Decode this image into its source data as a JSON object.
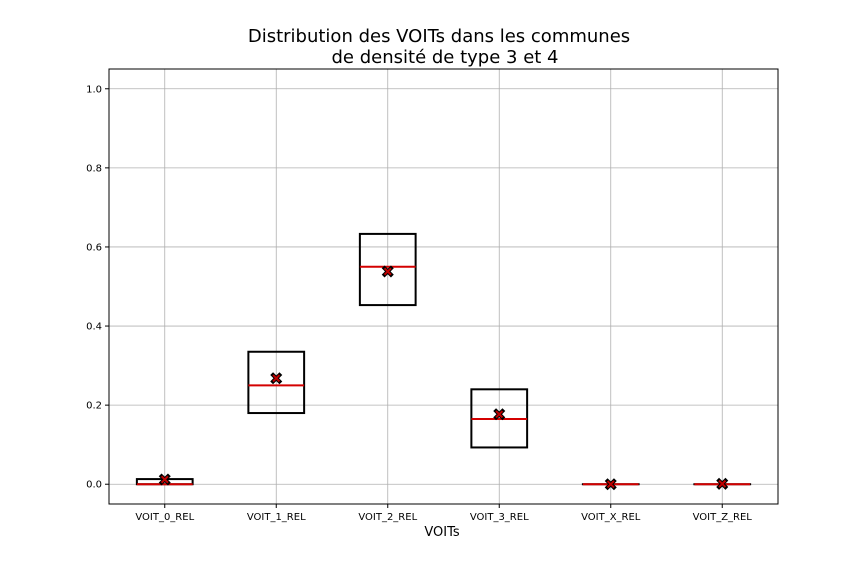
{
  "chart_data": {
    "type": "box",
    "title_lines": [
      "Distribution des VOITs dans les communes",
      "de densité de type 3 et 4"
    ],
    "xlabel": "VOITs",
    "ylabel": "",
    "ylim": [
      -0.05,
      1.05
    ],
    "yticks": [
      0.0,
      0.2,
      0.4,
      0.6,
      0.8,
      1.0
    ],
    "ytick_labels": [
      "0.0",
      "0.2",
      "0.4",
      "0.6",
      "0.8",
      "1.0"
    ],
    "grid": true,
    "categories": [
      "VOIT_0_REL",
      "VOIT_1_REL",
      "VOIT_2_REL",
      "VOIT_3_REL",
      "VOIT_X_REL",
      "VOIT_Z_REL"
    ],
    "boxes": [
      {
        "q1": 0.0,
        "median": 0.0,
        "q3": 0.013,
        "mean": 0.012
      },
      {
        "q1": 0.18,
        "median": 0.25,
        "q3": 0.335,
        "mean": 0.268
      },
      {
        "q1": 0.453,
        "median": 0.55,
        "q3": 0.633,
        "mean": 0.538
      },
      {
        "q1": 0.093,
        "median": 0.165,
        "q3": 0.24,
        "mean": 0.177
      },
      {
        "q1": 0.0,
        "median": 0.0,
        "q3": 0.0,
        "mean": 0.0
      },
      {
        "q1": 0.0,
        "median": 0.0,
        "q3": 0.0,
        "mean": 0.001
      }
    ],
    "colors": {
      "box": "#000000",
      "median": "#d40000",
      "mean_marker": "#c00000",
      "grid": "#b0b0b0"
    }
  }
}
